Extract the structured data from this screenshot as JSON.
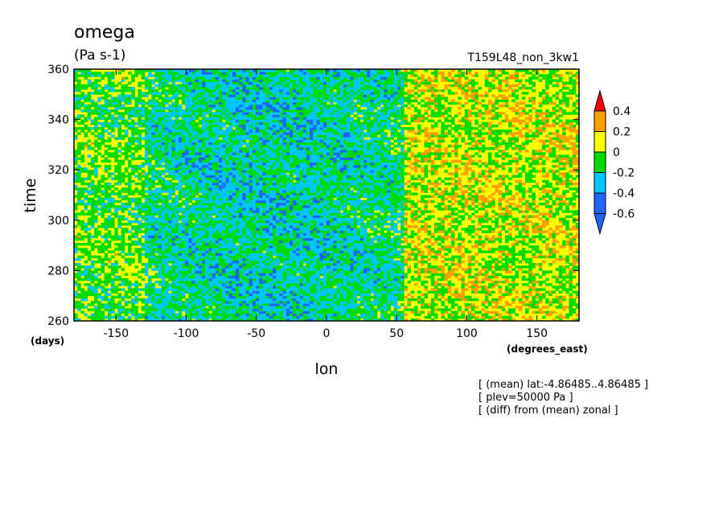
{
  "chart_data": {
    "type": "heatmap",
    "title": "omega",
    "units": "(Pa s-1)",
    "experiment": "T159L48_non_3kw1",
    "xlabel": "lon",
    "xunits": "(degrees_east)",
    "ylabel": "time",
    "yunits": "(days)",
    "xlim": [
      -180,
      180
    ],
    "ylim": [
      260,
      360
    ],
    "xticks": [
      "-150",
      "-100",
      "-50",
      "0",
      "50",
      "100",
      "150"
    ],
    "xtick_values": [
      -150,
      -100,
      -50,
      0,
      50,
      100,
      150
    ],
    "yticks": [
      "260",
      "280",
      "300",
      "320",
      "340",
      "360"
    ],
    "ytick_values": [
      260,
      280,
      300,
      320,
      340,
      360
    ],
    "grid": false,
    "colorbar": {
      "labels": [
        "0.4",
        "0.2",
        "0",
        "-0.2",
        "-0.4",
        "-0.6"
      ],
      "levels": [
        -0.6,
        -0.4,
        -0.2,
        0,
        0.2,
        0.4
      ],
      "colors": [
        "#1e64ff",
        "#00c8ff",
        "#00dc00",
        "#ffff00",
        "#ffa000",
        "#ff0000"
      ],
      "position": "right"
    },
    "description_values": {
      "west_band_lon": [
        -180,
        -130
      ],
      "west_band_mean": -0.05,
      "convective_core_lon": [
        -130,
        55
      ],
      "convective_core_mean": -0.25,
      "east_region_lon": [
        55,
        180
      ],
      "east_region_mean": 0.08
    },
    "notes": [
      "[ (mean) lat:-4.86485..4.86485 ]",
      "[ plev=50000 Pa ]",
      "[ (diff) from (mean) zonal ]"
    ]
  }
}
